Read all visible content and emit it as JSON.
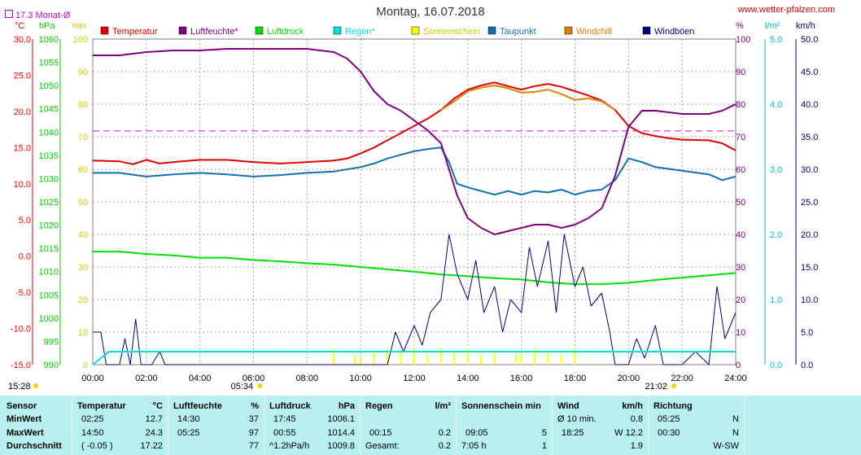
{
  "title": "Montag, 16.07.2018",
  "site": "www.wetter-pfalzen.com",
  "monat_label": "17.3 Monat-Ø",
  "units": {
    "temp": "°C",
    "press": "hPa",
    "min": "min",
    "pct": "%",
    "rain": "l/m²",
    "wind": "km/h"
  },
  "sunrise": "05:34",
  "sunset": "21:02",
  "time_start": "15:28",
  "stats": {
    "labels": {
      "sensor": "Sensor",
      "min": "MinWert",
      "max": "MaxWert",
      "avg": "Durchschnitt"
    },
    "temp": {
      "h": "Temperatur",
      "u": "°C",
      "min_t": "02:25",
      "min_v": "12.7",
      "max_t": "14:50",
      "max_v": "24.3",
      "avg_t": "( -0.05 )",
      "avg_v": "17.22"
    },
    "hum": {
      "h": "Luftfeuchte",
      "u": "%",
      "min_t": "14:30",
      "min_v": "37",
      "max_t": "05:25",
      "max_v": "97",
      "avg_v": "77"
    },
    "press": {
      "h": "Luftdruck",
      "u": "hPa",
      "min_t": "17:45",
      "min_v": "1006.1",
      "max_t": "00:55",
      "max_v": "1014.4",
      "avg_t": "^1.2hPa/h",
      "avg_v": "1009.8"
    },
    "rain": {
      "h": "Regen",
      "u": "l/m²",
      "max_t": "00:15",
      "max_v": "0.2",
      "avg_t": "Gesamt:",
      "avg_v": "0.2"
    },
    "sun": {
      "h": "Sonnenschein min",
      "max_t": "09:05",
      "max_v": "5",
      "avg_t": "7:05 h",
      "avg_v": "1"
    },
    "wind": {
      "h": "Wind",
      "u": "km/h",
      "min_t": "Ø 10 min.",
      "min_v": "0.8",
      "max_t": "18:25",
      "max_v": "W 12.2",
      "avg_v": "1.9"
    },
    "dir": {
      "h": "Richtung",
      "min_t": "05:25",
      "min_v": "N",
      "max_t": "00:30",
      "max_v": "N",
      "avg_v": "W-SW"
    }
  },
  "chart_data": {
    "type": "line",
    "title": "Montag, 16.07.2018",
    "x_ticks": [
      "00:00",
      "02:00",
      "04:00",
      "06:00",
      "08:00",
      "10:00",
      "12:00",
      "14:00",
      "16:00",
      "18:00",
      "20:00",
      "22:00",
      "24:00"
    ],
    "xlim_hours": [
      0,
      24
    ],
    "axes": {
      "temp_c": {
        "ticks": [
          "30.0",
          "25.0",
          "20.0",
          "15.0",
          "10.0",
          "5.0",
          "0.0",
          "-5.0",
          "-10.0",
          "-15.0"
        ],
        "range": [
          -15,
          30
        ],
        "color": "#ff0000"
      },
      "press_hpa": {
        "ticks": [
          "1060",
          "1055",
          "1050",
          "1045",
          "1040",
          "1035",
          "1030",
          "1025",
          "1020",
          "1015",
          "1010",
          "1005",
          "1000",
          "995",
          "990"
        ],
        "range": [
          990,
          1060
        ],
        "color": "#00cc00"
      },
      "min": {
        "ticks": [
          "100",
          "90",
          "80",
          "70",
          "60",
          "50",
          "40",
          "30",
          "20",
          "10",
          "0"
        ],
        "range": [
          0,
          100
        ],
        "color": "#cccc00"
      },
      "pct": {
        "ticks": [
          "100",
          "90",
          "80",
          "70",
          "60",
          "50",
          "40",
          "30",
          "20",
          "10",
          "0"
        ],
        "range": [
          0,
          100
        ],
        "color": "#800080"
      },
      "rain": {
        "ticks": [
          "5.0",
          "4.0",
          "3.0",
          "2.0",
          "1.0",
          "0.0"
        ],
        "range": [
          0,
          5
        ],
        "color": "#00c0c0"
      },
      "wind": {
        "ticks": [
          "50.0",
          "45.0",
          "40.0",
          "35.0",
          "30.0",
          "25.0",
          "20.0",
          "15.0",
          "10.0",
          "5.0",
          "0.0"
        ],
        "range": [
          0,
          50
        ],
        "color": "#000080"
      }
    },
    "legend": [
      {
        "name": "Temperatur",
        "color": "#e00000"
      },
      {
        "name": "Luftfeuchte*",
        "color": "#800080"
      },
      {
        "name": "Luftdruck",
        "color": "#00e000"
      },
      {
        "name": "Regen*",
        "color": "#00e0e0"
      },
      {
        "name": "Sonnenschein",
        "color": "#ffff00"
      },
      {
        "name": "Taupunkt",
        "color": "#1070b0"
      },
      {
        "name": "Windchill",
        "color": "#e08000"
      },
      {
        "name": "Windböen",
        "color": "#000080"
      }
    ],
    "reference_line": {
      "axis": "temp_c",
      "value": 17.3
    },
    "series": [
      {
        "name": "Temperatur",
        "axis": "temp_c",
        "color": "#e00000",
        "points": [
          [
            0,
            13.2
          ],
          [
            1,
            13.1
          ],
          [
            1.5,
            12.7
          ],
          [
            2,
            13.3
          ],
          [
            2.5,
            12.8
          ],
          [
            3,
            13.0
          ],
          [
            4,
            13.3
          ],
          [
            5,
            13.3
          ],
          [
            6,
            13.0
          ],
          [
            7,
            12.8
          ],
          [
            8,
            13.0
          ],
          [
            9,
            13.2
          ],
          [
            9.5,
            13.5
          ],
          [
            10,
            14.2
          ],
          [
            10.5,
            15.0
          ],
          [
            11,
            16.0
          ],
          [
            11.5,
            17.0
          ],
          [
            12,
            18.0
          ],
          [
            12.5,
            19.0
          ],
          [
            13,
            20.2
          ],
          [
            13.5,
            21.8
          ],
          [
            14,
            23.0
          ],
          [
            14.5,
            23.6
          ],
          [
            15,
            24.0
          ],
          [
            15.5,
            23.5
          ],
          [
            16,
            23.0
          ],
          [
            16.5,
            23.5
          ],
          [
            17,
            23.8
          ],
          [
            17.5,
            23.4
          ],
          [
            18,
            22.8
          ],
          [
            18.5,
            22.2
          ],
          [
            19,
            21.5
          ],
          [
            19.5,
            20.2
          ],
          [
            20,
            18.0
          ],
          [
            20.5,
            17.0
          ],
          [
            21,
            16.6
          ],
          [
            21.5,
            16.3
          ],
          [
            22,
            16.1
          ],
          [
            23,
            16.0
          ],
          [
            23.5,
            15.6
          ],
          [
            24,
            14.6
          ]
        ]
      },
      {
        "name": "Windchill",
        "axis": "temp_c",
        "color": "#e08000",
        "points": [
          [
            13,
            20.2
          ],
          [
            13.5,
            21.4
          ],
          [
            14,
            22.8
          ],
          [
            14.5,
            23.3
          ],
          [
            15,
            23.6
          ],
          [
            15.5,
            23.2
          ],
          [
            16,
            22.6
          ],
          [
            16.5,
            22.7
          ],
          [
            17,
            23.0
          ],
          [
            17.5,
            22.4
          ],
          [
            18,
            21.6
          ],
          [
            18.5,
            21.8
          ],
          [
            19,
            21.4
          ],
          [
            19.5,
            20.2
          ]
        ]
      },
      {
        "name": "Taupunkt",
        "axis": "temp_c",
        "color": "#1070b0",
        "points": [
          [
            0,
            11.5
          ],
          [
            1,
            11.5
          ],
          [
            2,
            11.0
          ],
          [
            3,
            11.3
          ],
          [
            4,
            11.5
          ],
          [
            5,
            11.3
          ],
          [
            6,
            11.0
          ],
          [
            7,
            11.2
          ],
          [
            8,
            11.5
          ],
          [
            9,
            11.7
          ],
          [
            10,
            12.3
          ],
          [
            10.5,
            12.8
          ],
          [
            11,
            13.5
          ],
          [
            11.5,
            14.0
          ],
          [
            12,
            14.5
          ],
          [
            12.5,
            14.8
          ],
          [
            13,
            15.0
          ],
          [
            13.3,
            13.0
          ],
          [
            13.6,
            10.0
          ],
          [
            14,
            9.5
          ],
          [
            14.5,
            9.0
          ],
          [
            15,
            8.5
          ],
          [
            15.5,
            9.0
          ],
          [
            16,
            8.5
          ],
          [
            16.5,
            9.0
          ],
          [
            17,
            8.8
          ],
          [
            17.5,
            9.2
          ],
          [
            18,
            8.5
          ],
          [
            18.5,
            9.0
          ],
          [
            19,
            9.2
          ],
          [
            19.5,
            10.5
          ],
          [
            20,
            13.5
          ],
          [
            20.5,
            13.0
          ],
          [
            21,
            12.3
          ],
          [
            22,
            11.8
          ],
          [
            23,
            11.3
          ],
          [
            23.5,
            10.5
          ],
          [
            24,
            11.0
          ]
        ]
      },
      {
        "name": "Luftfeuchte*",
        "axis": "pct",
        "color": "#800080",
        "points": [
          [
            0,
            95
          ],
          [
            1,
            95
          ],
          [
            2,
            96
          ],
          [
            3,
            96.5
          ],
          [
            4,
            96.5
          ],
          [
            5,
            97
          ],
          [
            6,
            97
          ],
          [
            7,
            97
          ],
          [
            8,
            97
          ],
          [
            9,
            96
          ],
          [
            9.5,
            94
          ],
          [
            10,
            90
          ],
          [
            10.5,
            84
          ],
          [
            11,
            80
          ],
          [
            11.5,
            78
          ],
          [
            12,
            75
          ],
          [
            12.5,
            72
          ],
          [
            13,
            68
          ],
          [
            13.3,
            60
          ],
          [
            13.6,
            52
          ],
          [
            14,
            45
          ],
          [
            14.5,
            42
          ],
          [
            15,
            40
          ],
          [
            15.5,
            41
          ],
          [
            16,
            42
          ],
          [
            16.5,
            43
          ],
          [
            17,
            43
          ],
          [
            17.5,
            42
          ],
          [
            18,
            43
          ],
          [
            18.5,
            45
          ],
          [
            19,
            48
          ],
          [
            19.5,
            58
          ],
          [
            20,
            73
          ],
          [
            20.5,
            78
          ],
          [
            21,
            78
          ],
          [
            22,
            77
          ],
          [
            23,
            77
          ],
          [
            23.5,
            78
          ],
          [
            24,
            80
          ]
        ]
      },
      {
        "name": "Luftdruck",
        "axis": "press_hpa",
        "color": "#00e000",
        "points": [
          [
            0,
            1014.3
          ],
          [
            1,
            1014.3
          ],
          [
            2,
            1013.8
          ],
          [
            3,
            1013.5
          ],
          [
            4,
            1013.0
          ],
          [
            5,
            1013.0
          ],
          [
            6,
            1012.5
          ],
          [
            7,
            1012.2
          ],
          [
            8,
            1011.8
          ],
          [
            9,
            1011.5
          ],
          [
            10,
            1011.0
          ],
          [
            11,
            1010.5
          ],
          [
            12,
            1010.0
          ],
          [
            13,
            1009.4
          ],
          [
            14,
            1009.0
          ],
          [
            15,
            1008.6
          ],
          [
            16,
            1008.3
          ],
          [
            17,
            1007.7
          ],
          [
            18,
            1007.3
          ],
          [
            19,
            1007.3
          ],
          [
            20,
            1007.6
          ],
          [
            21,
            1008.2
          ],
          [
            22,
            1008.7
          ],
          [
            23,
            1009.2
          ],
          [
            24,
            1009.7
          ]
        ]
      },
      {
        "name": "Windböen",
        "axis": "wind",
        "color": "#000080",
        "points": [
          [
            0,
            5
          ],
          [
            0.3,
            5
          ],
          [
            0.5,
            0
          ],
          [
            1,
            0
          ],
          [
            1.2,
            4
          ],
          [
            1.4,
            0
          ],
          [
            1.6,
            7
          ],
          [
            1.8,
            0
          ],
          [
            2.2,
            0
          ],
          [
            2.5,
            2
          ],
          [
            2.7,
            0
          ],
          [
            11,
            0
          ],
          [
            11.3,
            5
          ],
          [
            11.6,
            2
          ],
          [
            12,
            6
          ],
          [
            12.3,
            3
          ],
          [
            12.6,
            8
          ],
          [
            13,
            10
          ],
          [
            13.3,
            20
          ],
          [
            13.6,
            14
          ],
          [
            14,
            10
          ],
          [
            14.3,
            16
          ],
          [
            14.6,
            8
          ],
          [
            15,
            12
          ],
          [
            15.3,
            5
          ],
          [
            15.6,
            10
          ],
          [
            16,
            8
          ],
          [
            16.3,
            18
          ],
          [
            16.6,
            12
          ],
          [
            17,
            19
          ],
          [
            17.3,
            8
          ],
          [
            17.6,
            20
          ],
          [
            18,
            12
          ],
          [
            18.3,
            15
          ],
          [
            18.6,
            9
          ],
          [
            19,
            11
          ],
          [
            19.3,
            5
          ],
          [
            19.5,
            0
          ],
          [
            20,
            0
          ],
          [
            20.3,
            4
          ],
          [
            20.6,
            1
          ],
          [
            21,
            6
          ],
          [
            21.3,
            0
          ],
          [
            22,
            0
          ],
          [
            22.5,
            2
          ],
          [
            23,
            0
          ],
          [
            23.3,
            12
          ],
          [
            23.6,
            4
          ],
          [
            24,
            8
          ]
        ]
      },
      {
        "name": "Regen*",
        "axis": "rain",
        "color": "#00e0e0",
        "points": [
          [
            0,
            0
          ],
          [
            0.3,
            0.1
          ],
          [
            0.6,
            0.2
          ],
          [
            24,
            0.2
          ]
        ]
      }
    ],
    "sunshine_minutes": [
      [
        9,
        5
      ],
      [
        9.8,
        3
      ],
      [
        10,
        2
      ],
      [
        10.5,
        4
      ],
      [
        11,
        5
      ],
      [
        11.5,
        4
      ],
      [
        12,
        5
      ],
      [
        12.5,
        3
      ],
      [
        13,
        5
      ],
      [
        13.5,
        4
      ],
      [
        14,
        5
      ],
      [
        14.5,
        3
      ],
      [
        15,
        4
      ],
      [
        15.8,
        3
      ],
      [
        16,
        4
      ],
      [
        16.5,
        5
      ],
      [
        17,
        4
      ],
      [
        17.5,
        3
      ],
      [
        18,
        5
      ]
    ]
  }
}
